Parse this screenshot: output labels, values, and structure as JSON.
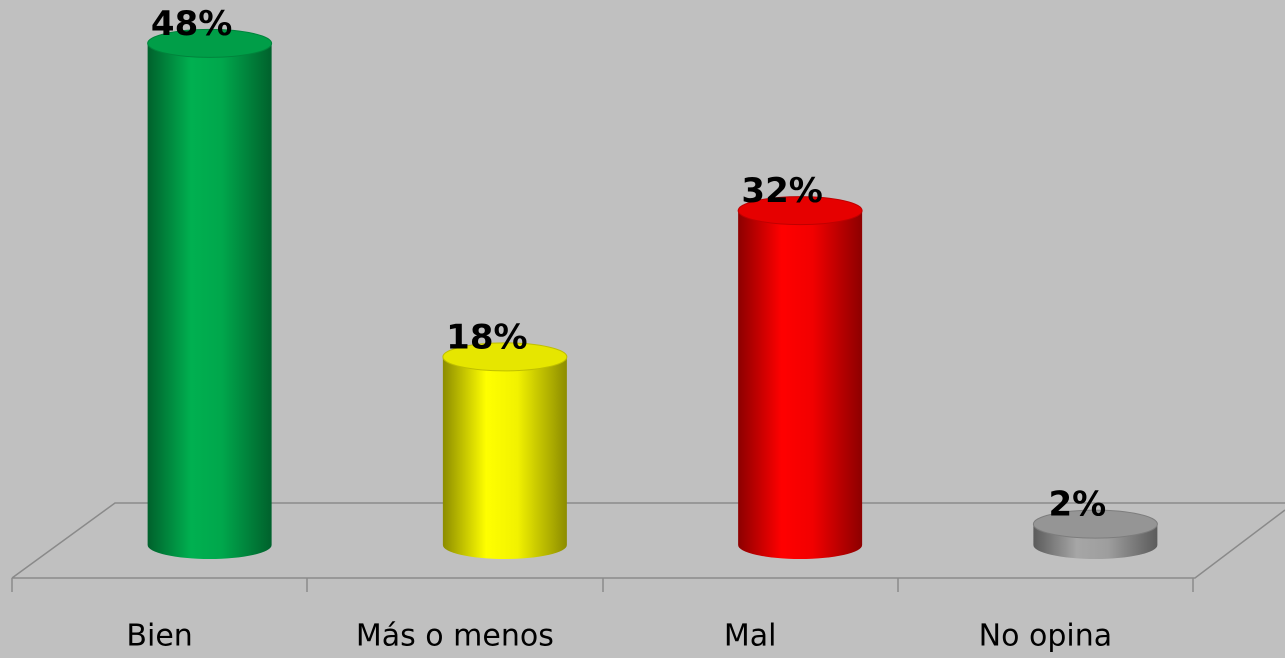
{
  "chart_data": {
    "type": "bar",
    "categories": [
      "Bien",
      "Más o menos",
      "Mal",
      "No opina"
    ],
    "values": [
      48,
      18,
      32,
      2
    ],
    "value_labels": [
      "48%",
      "18%",
      "32%",
      "2%"
    ],
    "colors": [
      "#00b050",
      "#ffff00",
      "#ff0000",
      "#a6a6a6"
    ]
  }
}
